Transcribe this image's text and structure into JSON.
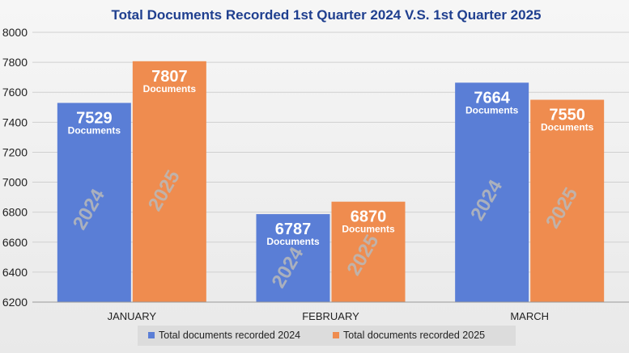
{
  "chart_data": {
    "type": "bar",
    "title": "Total Documents Recorded 1st Quarter 2024 V.S. 1st Quarter 2025",
    "categories": [
      "JANUARY",
      "FEBRUARY",
      "MARCH"
    ],
    "series": [
      {
        "name": "Total documents recorded 2024",
        "year_label": "2024",
        "values": [
          7529,
          6787,
          7664
        ],
        "color": "#5a7ed6"
      },
      {
        "name": "Total documents recorded 2025",
        "year_label": "2025",
        "values": [
          7807,
          6870,
          7550
        ],
        "color": "#ef8c4f"
      }
    ],
    "value_unit_label": "Documents",
    "yticks": [
      6200,
      6400,
      6600,
      6800,
      7000,
      7200,
      7400,
      7600,
      7800,
      8000
    ],
    "ylim": [
      6200,
      8000
    ],
    "grid": true,
    "legend_position": "bottom"
  }
}
